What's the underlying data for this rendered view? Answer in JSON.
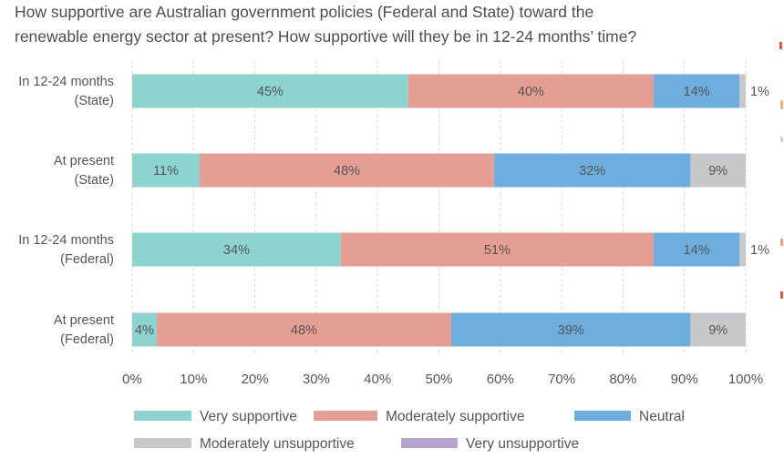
{
  "title": {
    "line1": "How supportive are Australian government policies (Federal and State) toward the",
    "line2": "renewable energy sector at present? How supportive will they be in 12-24 months’ time?"
  },
  "chart_data": {
    "type": "bar",
    "orientation": "horizontal",
    "stacked": true,
    "categories": [
      [
        "In 12-24 months",
        "(State)"
      ],
      [
        "At present",
        "(State)"
      ],
      [
        "In 12-24 months",
        "(Federal)"
      ],
      [
        "At present",
        "(Federal)"
      ]
    ],
    "series": [
      {
        "name": "Very supportive",
        "color": "#8dd3cf",
        "values": [
          45,
          11,
          34,
          4
        ],
        "labels": [
          "45%",
          "11%",
          "34%",
          "4%"
        ]
      },
      {
        "name": "Moderately supportive",
        "color": "#e59e93",
        "values": [
          40,
          48,
          51,
          48
        ],
        "labels": [
          "40%",
          "48%",
          "51%",
          "48%"
        ]
      },
      {
        "name": "Neutral",
        "color": "#6eaedf",
        "values": [
          14,
          32,
          14,
          39
        ],
        "labels": [
          "14%",
          "32%",
          "14%",
          "39%"
        ]
      },
      {
        "name": "Moderately unsupportive",
        "color": "#c8c8ca",
        "values": [
          1,
          9,
          1,
          9
        ],
        "labels": [
          "1%",
          "9%",
          "1%",
          "9%"
        ]
      },
      {
        "name": "Very unsupportive",
        "color": "#b9a3cf",
        "values": [
          0,
          0,
          0,
          0
        ],
        "labels": [
          "",
          "",
          "",
          ""
        ]
      }
    ],
    "xlim": [
      0,
      100
    ],
    "xticks": [
      "0%",
      "10%",
      "20%",
      "30%",
      "40%",
      "50%",
      "60%",
      "70%",
      "80%",
      "90%",
      "100%"
    ],
    "grid": true,
    "legend": "bottom"
  },
  "colors": {
    "accent_edge": "#e8524a",
    "edge_text": "#f0a070"
  }
}
